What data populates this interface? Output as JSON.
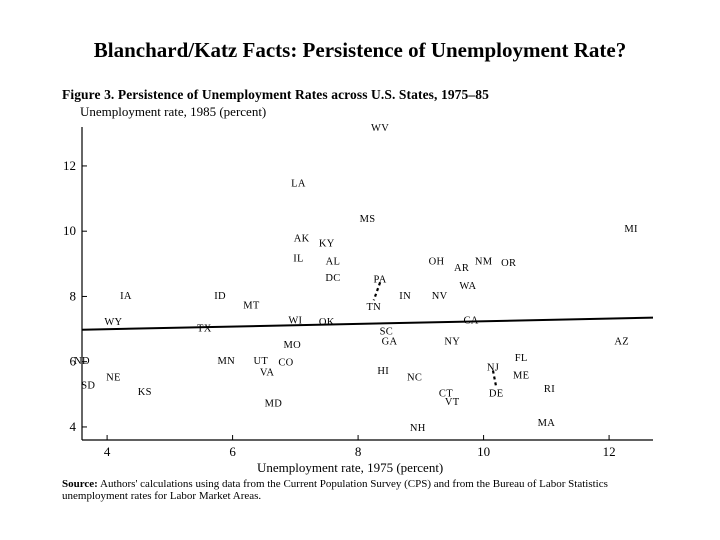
{
  "slide_title": "Blanchard/Katz Facts:  Persistence of Unemployment Rate?",
  "figure": {
    "title": "Figure 3.  Persistence of Unemployment Rates across U.S. States, 1975–85",
    "source_lead": "Source:",
    "source_text": " Authors' calculations using data from the Current Population Survey (CPS) and from the Bureau of Labor Statistics unemployment rates for Labor Market Areas."
  },
  "chart_data": {
    "type": "scatter",
    "title": "Figure 3.  Persistence of Unemployment Rates across U.S. States, 1975–85",
    "xlabel": "Unemployment rate, 1975 (percent)",
    "ylabel": "Unemployment rate, 1985 (percent)",
    "xlim": [
      3.5,
      12.7
    ],
    "ylim": [
      3.6,
      13.5
    ],
    "x_ticks": [
      4,
      6,
      8,
      10,
      12
    ],
    "y_ticks": [
      4,
      6,
      8,
      10,
      12
    ],
    "grid": false,
    "points": [
      {
        "label": "WV",
        "x": 8.35,
        "y": 13.2
      },
      {
        "label": "LA",
        "x": 7.05,
        "y": 11.5
      },
      {
        "label": "MS",
        "x": 8.15,
        "y": 10.4
      },
      {
        "label": "MI",
        "x": 12.35,
        "y": 10.1
      },
      {
        "label": "AK",
        "x": 7.1,
        "y": 9.8
      },
      {
        "label": "KY",
        "x": 7.5,
        "y": 9.65
      },
      {
        "label": "IL",
        "x": 7.05,
        "y": 9.2
      },
      {
        "label": "AL",
        "x": 7.6,
        "y": 9.1
      },
      {
        "label": "OH",
        "x": 9.25,
        "y": 9.1
      },
      {
        "label": "NM",
        "x": 10.0,
        "y": 9.1
      },
      {
        "label": "OR",
        "x": 10.4,
        "y": 9.05
      },
      {
        "label": "AR",
        "x": 9.65,
        "y": 8.9
      },
      {
        "label": "DC",
        "x": 7.6,
        "y": 8.6
      },
      {
        "label": "PA",
        "x": 8.35,
        "y": 8.55
      },
      {
        "label": "WA",
        "x": 9.75,
        "y": 8.35
      },
      {
        "label": "IA",
        "x": 4.3,
        "y": 8.05
      },
      {
        "label": "ID",
        "x": 5.8,
        "y": 8.05
      },
      {
        "label": "IN",
        "x": 8.75,
        "y": 8.05
      },
      {
        "label": "NV",
        "x": 9.3,
        "y": 8.05
      },
      {
        "label": "MT",
        "x": 6.3,
        "y": 7.75
      },
      {
        "label": "TN",
        "x": 8.25,
        "y": 7.7
      },
      {
        "label": "WY",
        "x": 4.1,
        "y": 7.25
      },
      {
        "label": "WI",
        "x": 7.0,
        "y": 7.3
      },
      {
        "label": "OK",
        "x": 7.5,
        "y": 7.25
      },
      {
        "label": "CA",
        "x": 9.8,
        "y": 7.3
      },
      {
        "label": "TX",
        "x": 5.55,
        "y": 7.05
      },
      {
        "label": "SC",
        "x": 8.45,
        "y": 6.95
      },
      {
        "label": "GA",
        "x": 8.5,
        "y": 6.65
      },
      {
        "label": "NY",
        "x": 9.5,
        "y": 6.65
      },
      {
        "label": "AZ",
        "x": 12.2,
        "y": 6.65
      },
      {
        "label": "MO",
        "x": 6.95,
        "y": 6.55
      },
      {
        "label": "ND",
        "x": 3.6,
        "y": 6.05
      },
      {
        "label": "MN",
        "x": 5.9,
        "y": 6.05
      },
      {
        "label": "UT",
        "x": 6.45,
        "y": 6.05
      },
      {
        "label": "CO",
        "x": 6.85,
        "y": 6.0
      },
      {
        "label": "FL",
        "x": 10.6,
        "y": 6.15
      },
      {
        "label": "NJ",
        "x": 10.15,
        "y": 5.85
      },
      {
        "label": "VA",
        "x": 6.55,
        "y": 5.7
      },
      {
        "label": "HI",
        "x": 8.4,
        "y": 5.75
      },
      {
        "label": "ME",
        "x": 10.6,
        "y": 5.6
      },
      {
        "label": "NE",
        "x": 4.1,
        "y": 5.55
      },
      {
        "label": "NC",
        "x": 8.9,
        "y": 5.55
      },
      {
        "label": "SD",
        "x": 3.7,
        "y": 5.3
      },
      {
        "label": "RI",
        "x": 11.05,
        "y": 5.2
      },
      {
        "label": "KS",
        "x": 4.6,
        "y": 5.1
      },
      {
        "label": "CT",
        "x": 9.4,
        "y": 5.05
      },
      {
        "label": "DE",
        "x": 10.2,
        "y": 5.05
      },
      {
        "label": "VT",
        "x": 9.5,
        "y": 4.8
      },
      {
        "label": "MD",
        "x": 6.65,
        "y": 4.75
      },
      {
        "label": "MA",
        "x": 11.0,
        "y": 4.15
      },
      {
        "label": "NH",
        "x": 8.95,
        "y": 4.0
      }
    ],
    "fit_line": {
      "x": [
        3.6,
        12.7
      ],
      "y": [
        6.98,
        7.35
      ]
    },
    "connectors": [
      {
        "from": "PA",
        "to": "TN"
      },
      {
        "from": "NJ",
        "to": "DE"
      }
    ]
  }
}
